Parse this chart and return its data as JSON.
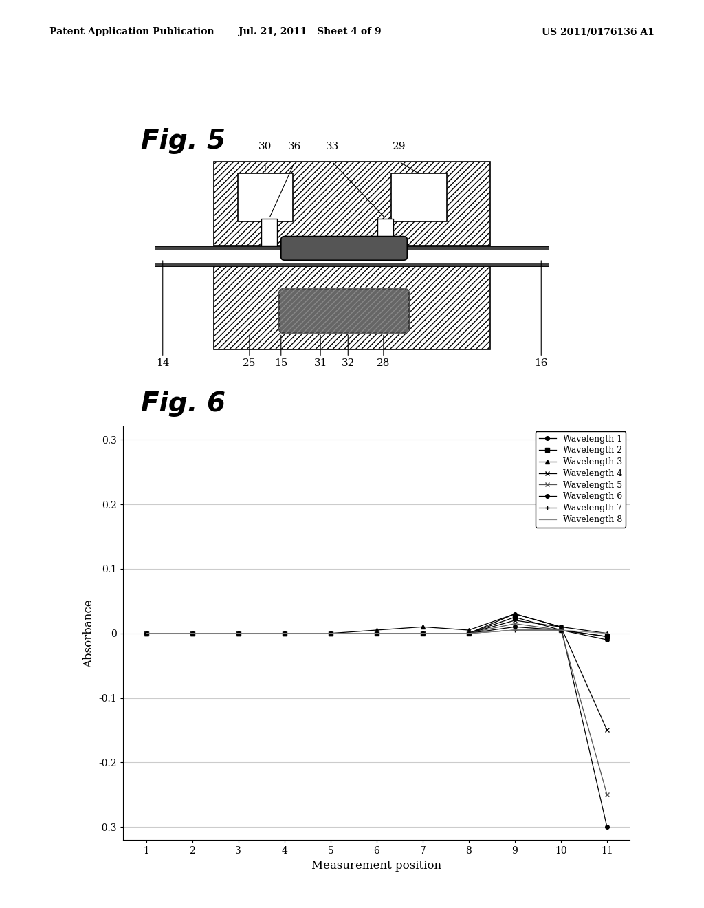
{
  "bg_color": "#ffffff",
  "header_left": "Patent Application Publication",
  "header_mid": "Jul. 21, 2011   Sheet 4 of 9",
  "header_right": "US 2011/0176136 A1",
  "fig5_label": "Fig. 5",
  "fig6_label": "Fig. 6",
  "fig5_top_labels": [
    "30",
    "36",
    "33",
    "29"
  ],
  "fig5_bottom_labels": [
    "14",
    "25",
    "15",
    "31",
    "32",
    "28",
    "16"
  ],
  "graph_xlabel": "Measurement position",
  "graph_ylabel": "Absorbance",
  "graph_xticks": [
    1,
    2,
    3,
    4,
    5,
    6,
    7,
    8,
    9,
    10,
    11
  ],
  "graph_yticks": [
    -0.3,
    -0.2,
    -0.1,
    0.0,
    0.1,
    0.2,
    0.3
  ],
  "series": [
    {
      "label": "Wavelength 1",
      "x": [
        1,
        2,
        3,
        4,
        5,
        6,
        7,
        8,
        9,
        10,
        11
      ],
      "y": [
        0,
        0,
        0,
        0,
        0,
        0,
        0,
        0,
        0.03,
        0.01,
        -0.3
      ],
      "marker": "o",
      "color": "#000000",
      "markersize": 4
    },
    {
      "label": "Wavelength 2",
      "x": [
        1,
        2,
        3,
        4,
        5,
        6,
        7,
        8,
        9,
        10,
        11
      ],
      "y": [
        0,
        0,
        0,
        0,
        0,
        0,
        0,
        0,
        0.025,
        0.005,
        -0.005
      ],
      "marker": "s",
      "color": "#000000",
      "markersize": 4
    },
    {
      "label": "Wavelength 3",
      "x": [
        1,
        2,
        3,
        4,
        5,
        6,
        7,
        8,
        9,
        10,
        11
      ],
      "y": [
        0,
        0,
        0,
        0,
        0,
        0.005,
        0.01,
        0.005,
        0.03,
        0.01,
        0.0
      ],
      "marker": "^",
      "color": "#000000",
      "markersize": 4
    },
    {
      "label": "Wavelength 4",
      "x": [
        1,
        2,
        3,
        4,
        5,
        6,
        7,
        8,
        9,
        10,
        11
      ],
      "y": [
        0,
        0,
        0,
        0,
        0,
        0,
        0,
        0,
        0.02,
        0.01,
        -0.15
      ],
      "marker": "x",
      "color": "#000000",
      "markersize": 5
    },
    {
      "label": "Wavelength 5",
      "x": [
        1,
        2,
        3,
        4,
        5,
        6,
        7,
        8,
        9,
        10,
        11
      ],
      "y": [
        0,
        0,
        0,
        0,
        0,
        0,
        0,
        0,
        0.015,
        0.005,
        -0.25
      ],
      "marker": "x",
      "color": "#555555",
      "markersize": 5
    },
    {
      "label": "Wavelength 6",
      "x": [
        1,
        2,
        3,
        4,
        5,
        6,
        7,
        8,
        9,
        10,
        11
      ],
      "y": [
        0,
        0,
        0,
        0,
        0,
        0,
        0,
        0,
        0.01,
        0.005,
        -0.01
      ],
      "marker": "o",
      "color": "#000000",
      "markersize": 4
    },
    {
      "label": "Wavelength 7",
      "x": [
        1,
        2,
        3,
        4,
        5,
        6,
        7,
        8,
        9,
        10,
        11
      ],
      "y": [
        0,
        0,
        0,
        0,
        0,
        0,
        0,
        0,
        0.005,
        0.005,
        -0.005
      ],
      "marker": "+",
      "color": "#000000",
      "markersize": 5
    },
    {
      "label": "Wavelength 8",
      "x": [
        1,
        2,
        3,
        4,
        5,
        6,
        7,
        8,
        9,
        10,
        11
      ],
      "y": [
        0,
        0,
        0,
        0,
        0,
        0,
        0,
        0,
        0.005,
        0.005,
        0.0
      ],
      "marker": "None",
      "color": "#888888",
      "markersize": 4
    }
  ]
}
